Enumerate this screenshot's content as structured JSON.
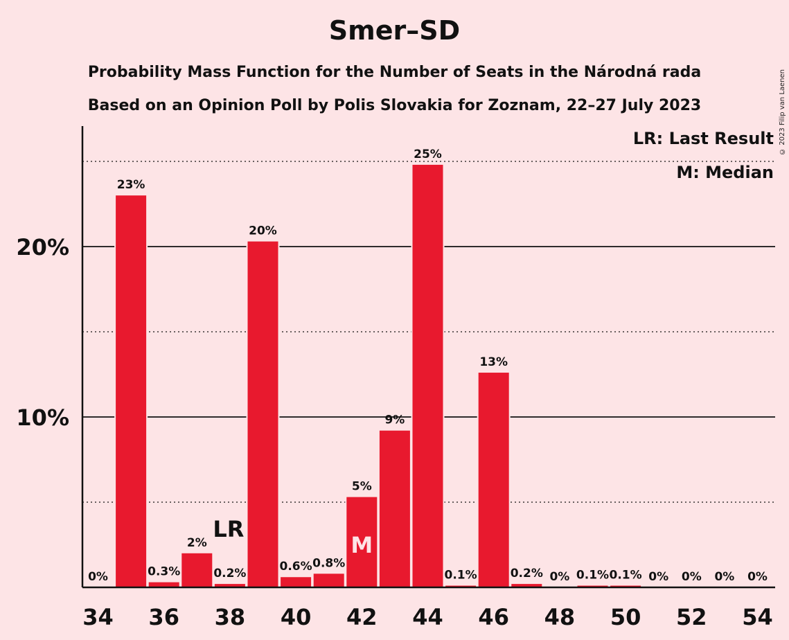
{
  "title": "Smer–SD",
  "subtitle": "Probability Mass Function for the Number of Seats in the Národná rada",
  "subtitle2": "Based on an Opinion Poll by Polis Slovakia for Zoznam, 22–27 July 2023",
  "copyright": "© 2023 Filip van Laenen",
  "legend": {
    "lr": "LR: Last Result",
    "m": "M: Median"
  },
  "colors": {
    "bar": "#e8192e",
    "background": "#fde4e6"
  },
  "chart_data": {
    "type": "bar",
    "x": [
      34,
      35,
      36,
      37,
      38,
      39,
      40,
      41,
      42,
      43,
      44,
      45,
      46,
      47,
      48,
      49,
      50,
      51,
      52,
      53,
      54
    ],
    "values": [
      0,
      23,
      0.3,
      2,
      0.2,
      20.3,
      0.6,
      0.8,
      5.3,
      9.2,
      24.8,
      0.1,
      12.6,
      0.2,
      0,
      0.1,
      0.1,
      0,
      0,
      0,
      0
    ],
    "labels": [
      "0%",
      "23%",
      "0.3%",
      "2%",
      "0.2%",
      "20%",
      "0.6%",
      "0.8%",
      "5%",
      "9%",
      "25%",
      "0.1%",
      "13%",
      "0.2%",
      "0%",
      "0.1%",
      "0.1%",
      "0%",
      "0%",
      "0%",
      "0%"
    ],
    "xticks": [
      "34",
      "36",
      "38",
      "40",
      "42",
      "44",
      "46",
      "48",
      "50",
      "52",
      "54"
    ],
    "yticks": [
      "10%",
      "20%"
    ],
    "ylim": [
      0,
      27
    ],
    "last_result_x": 38,
    "last_result_label": "LR",
    "median_x": 42,
    "median_label": "M",
    "grid": "solid at 10% and 20%, dotted at 5%, 15%, 25%"
  }
}
